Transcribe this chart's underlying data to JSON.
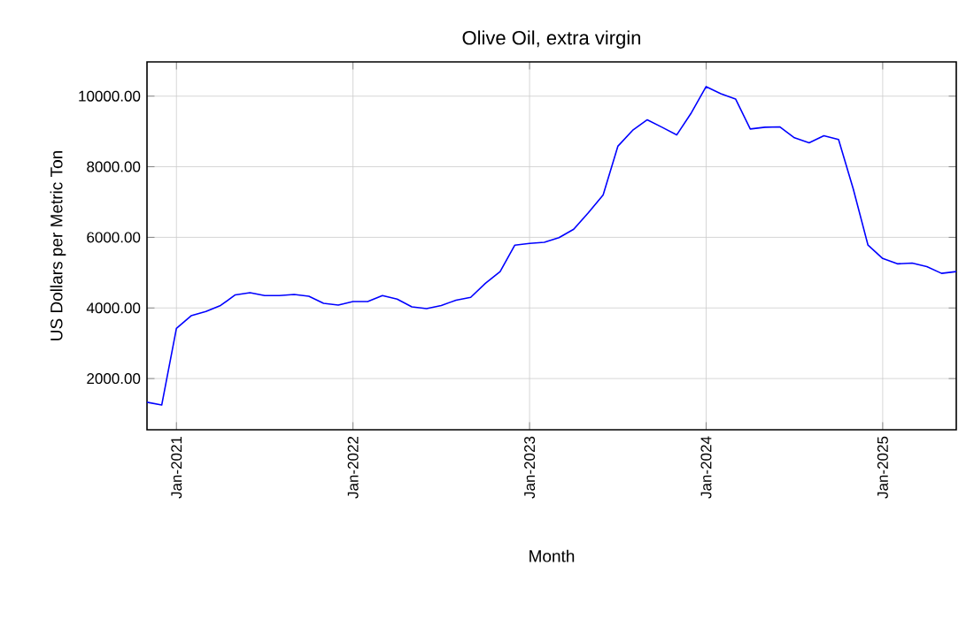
{
  "chart_data": {
    "type": "line",
    "title": "Olive Oil, extra virgin",
    "xlabel": "Month",
    "ylabel": "US Dollars per Metric Ton",
    "x": [
      "2020-11",
      "2020-12",
      "2021-01",
      "2021-02",
      "2021-03",
      "2021-04",
      "2021-05",
      "2021-06",
      "2021-07",
      "2021-08",
      "2021-09",
      "2021-10",
      "2021-11",
      "2021-12",
      "2022-01",
      "2022-02",
      "2022-03",
      "2022-04",
      "2022-05",
      "2022-06",
      "2022-07",
      "2022-08",
      "2022-09",
      "2022-10",
      "2022-11",
      "2022-12",
      "2023-01",
      "2023-02",
      "2023-03",
      "2023-04",
      "2023-05",
      "2023-06",
      "2023-07",
      "2023-08",
      "2023-09",
      "2023-10",
      "2023-11",
      "2023-12",
      "2024-01",
      "2024-02",
      "2024-03",
      "2024-04",
      "2024-05",
      "2024-06",
      "2024-07",
      "2024-08",
      "2024-09",
      "2024-10",
      "2024-11",
      "2024-12",
      "2025-01",
      "2025-02",
      "2025-03",
      "2025-04",
      "2025-05",
      "2025-06"
    ],
    "series": [
      {
        "color": "#0000ff",
        "values": [
          1330,
          1250,
          3420,
          3780,
          3900,
          4070,
          4370,
          4430,
          4350,
          4350,
          4380,
          4330,
          4130,
          4080,
          4180,
          4180,
          4350,
          4250,
          4030,
          3980,
          4070,
          4220,
          4300,
          4700,
          5030,
          5780,
          5830,
          5860,
          5990,
          6230,
          6700,
          7200,
          8580,
          9030,
          9330,
          9120,
          8900,
          9530,
          10270,
          10070,
          9920,
          9070,
          9120,
          9130,
          8820,
          8680,
          8880,
          8770,
          7370,
          5780,
          5400,
          5250,
          5270,
          5170,
          4980,
          5030
        ]
      }
    ],
    "xlim": [
      "2020-11",
      "2025-06"
    ],
    "xticks": [
      {
        "value": "2021-01",
        "label": "Jan-2021"
      },
      {
        "value": "2022-01",
        "label": "Jan-2022"
      },
      {
        "value": "2023-01",
        "label": "Jan-2023"
      },
      {
        "value": "2024-01",
        "label": "Jan-2024"
      },
      {
        "value": "2025-01",
        "label": "Jan-2025"
      }
    ],
    "ylim": [
      550,
      10970
    ],
    "yticks": [
      {
        "value": 2000,
        "label": "2000.00"
      },
      {
        "value": 4000,
        "label": "4000.00"
      },
      {
        "value": 6000,
        "label": "6000.00"
      },
      {
        "value": 8000,
        "label": "8000.00"
      },
      {
        "value": 10000,
        "label": "10000.00"
      }
    ],
    "grid": true
  }
}
